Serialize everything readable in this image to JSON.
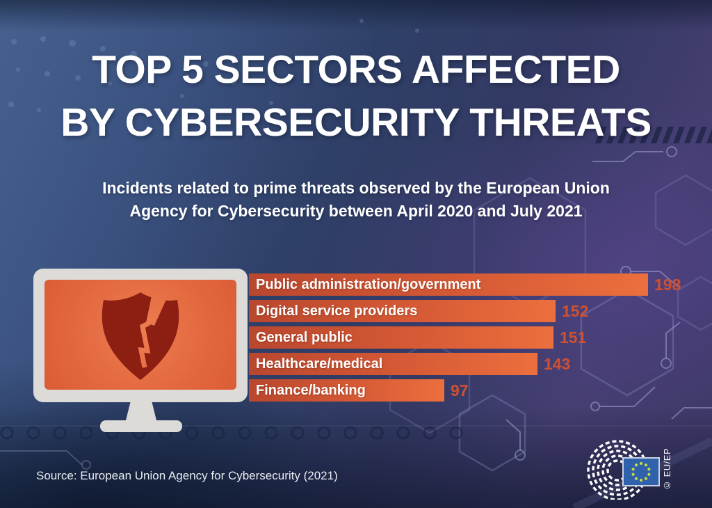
{
  "title": {
    "line1": "TOP 5 SECTORS AFFECTED",
    "line2": "BY CYBERSECURITY THREATS"
  },
  "subtitle": {
    "line1": "Incidents related to prime threats observed by the European Union",
    "line2": "Agency for Cybersecurity between April 2020 and July 2021"
  },
  "chart_data": {
    "type": "bar",
    "orientation": "horizontal",
    "title": "Top 5 sectors affected by cybersecurity threats",
    "categories": [
      "Public administration/government",
      "Digital service providers",
      "General public",
      "Healthcare/medical",
      "Finance/banking"
    ],
    "values": [
      198,
      152,
      151,
      143,
      97
    ],
    "xlim": [
      0,
      198
    ],
    "value_labels_shown": true,
    "legend": "none",
    "grid": "off",
    "bar_gradient": [
      "#b9472e",
      "#ec6f3e"
    ],
    "value_color": "#d0502f",
    "label_color": "#ffffff"
  },
  "illustration": {
    "name": "monitor-with-broken-shield",
    "frame_color": "#dcdbd8",
    "screen_color": "#e4693f",
    "shield_color": "#8c1f12"
  },
  "footer": {
    "source": "Source: European Union Agency for Cybersecurity (2021)",
    "credit": "© EU/EP"
  },
  "logo": {
    "name": "european-parliament-hemicycle-logo",
    "flag_color": "#2f62aa",
    "star_color": "#cfe03a"
  },
  "colors": {
    "background_top_left": "#46618f",
    "background_right_purple": "#473e72",
    "background_bottom": "#1c2a47",
    "accent_orange": "#e8663c"
  }
}
